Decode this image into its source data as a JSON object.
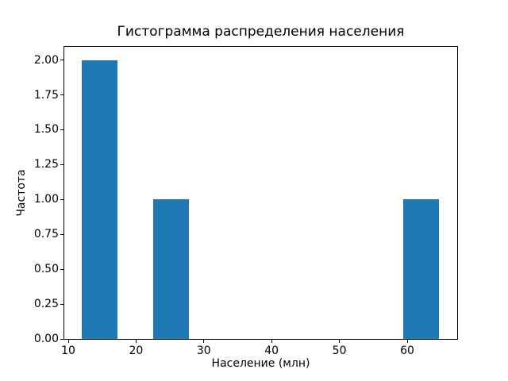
{
  "chart_data": {
    "type": "bar",
    "subtype": "histogram",
    "title": "Гистограмма распределения населения",
    "xlabel": "Население (млн)",
    "ylabel": "Частота",
    "bar_color": "#1f77b4",
    "background_color": "#ffffff",
    "grid": false,
    "legend": false,
    "xlim": [
      9.3,
      67.5
    ],
    "ylim": [
      0,
      2.1
    ],
    "x_ticks": [
      {
        "value": 10,
        "label": "10"
      },
      {
        "value": 20,
        "label": "20"
      },
      {
        "value": 30,
        "label": "30"
      },
      {
        "value": 40,
        "label": "40"
      },
      {
        "value": 50,
        "label": "50"
      },
      {
        "value": 60,
        "label": "60"
      }
    ],
    "y_ticks": [
      {
        "value": 0.0,
        "label": "0.00"
      },
      {
        "value": 0.25,
        "label": "0.25"
      },
      {
        "value": 0.5,
        "label": "0.50"
      },
      {
        "value": 0.75,
        "label": "0.75"
      },
      {
        "value": 1.0,
        "label": "1.00"
      },
      {
        "value": 1.25,
        "label": "1.25"
      },
      {
        "value": 1.5,
        "label": "1.50"
      },
      {
        "value": 1.75,
        "label": "1.75"
      },
      {
        "value": 2.0,
        "label": "2.00"
      }
    ],
    "bin_width_approx": 5.27,
    "bars": [
      {
        "x_start": 12.0,
        "x_end": 17.27,
        "count": 2
      },
      {
        "x_start": 22.54,
        "x_end": 27.81,
        "count": 1
      },
      {
        "x_start": 59.43,
        "x_end": 64.7,
        "count": 1
      }
    ]
  }
}
